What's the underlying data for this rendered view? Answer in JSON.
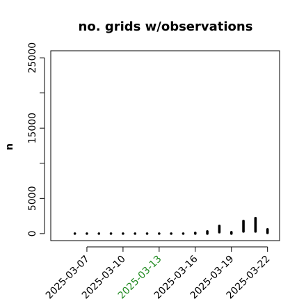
{
  "chart_data": {
    "type": "scatter",
    "title": "no. grids w/observations",
    "xlabel": "",
    "ylabel": "n",
    "ylim": [
      -1000,
      26000
    ],
    "xlim": [
      "2025-03-04",
      "2025-03-23"
    ],
    "yticks_labeled": [
      0,
      5000,
      15000,
      25000
    ],
    "yticks_minor": [
      10000,
      20000
    ],
    "xticks": [
      {
        "label": "2025-03-07",
        "x": "2025-03-07",
        "color": "#000000"
      },
      {
        "label": "2025-03-10",
        "x": "2025-03-10",
        "color": "#000000"
      },
      {
        "label": "2025-03-13",
        "x": "2025-03-13",
        "color": "#228B22"
      },
      {
        "label": "2025-03-16",
        "x": "2025-03-16",
        "color": "#000000"
      },
      {
        "label": "2025-03-19",
        "x": "2025-03-19",
        "color": "#000000"
      },
      {
        "label": "2025-03-22",
        "x": "2025-03-22",
        "color": "#000000"
      }
    ],
    "grid": false,
    "legend": "none",
    "series": [
      {
        "marker_color": "#000000",
        "points": [
          {
            "x": "2025-03-06",
            "y": [
              0
            ]
          },
          {
            "x": "2025-03-07",
            "y": [
              0
            ]
          },
          {
            "x": "2025-03-08",
            "y": [
              0
            ]
          },
          {
            "x": "2025-03-09",
            "y": [
              0
            ]
          },
          {
            "x": "2025-03-10",
            "y": [
              0
            ]
          },
          {
            "x": "2025-03-11",
            "y": [
              0
            ]
          },
          {
            "x": "2025-03-12",
            "y": [
              0
            ]
          },
          {
            "x": "2025-03-13",
            "y": [
              0
            ]
          },
          {
            "x": "2025-03-14",
            "y": [
              0
            ]
          },
          {
            "x": "2025-03-15",
            "y": [
              0
            ]
          },
          {
            "x": "2025-03-16",
            "y": [
              0,
              100
            ]
          },
          {
            "x": "2025-03-17",
            "y": [
              0,
              300
            ]
          },
          {
            "x": "2025-03-18",
            "y": [
              200,
              1100
            ]
          },
          {
            "x": "2025-03-19",
            "y": [
              0,
              200
            ]
          },
          {
            "x": "2025-03-20",
            "y": [
              300,
              1800
            ]
          },
          {
            "x": "2025-03-21",
            "y": [
              300,
              2200
            ]
          },
          {
            "x": "2025-03-22",
            "y": [
              100,
              600
            ]
          }
        ]
      }
    ]
  }
}
